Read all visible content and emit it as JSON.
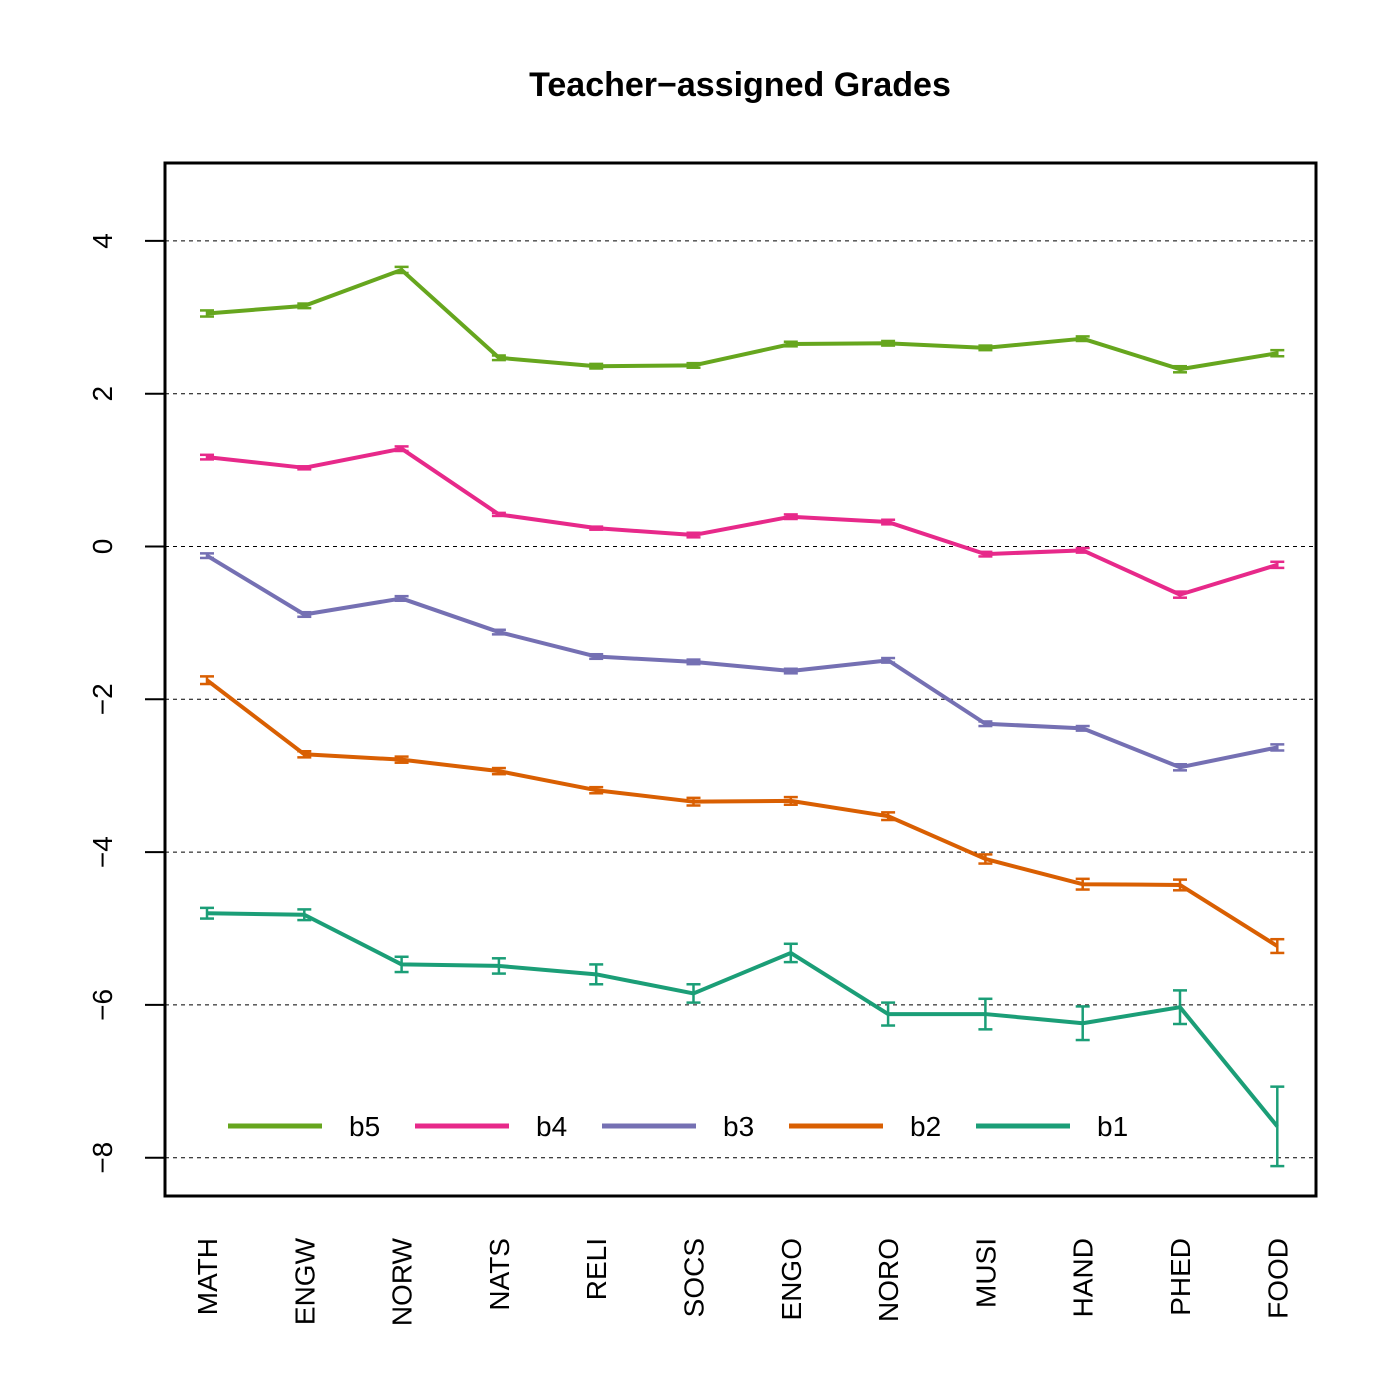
{
  "chart_data": {
    "type": "line",
    "title": "Teacher−assigned Grades",
    "xlabel": "",
    "ylabel": "",
    "ylim": [
      -9,
      5
    ],
    "yticks": [
      4,
      2,
      0,
      -2,
      -4,
      -6,
      -8
    ],
    "ytick_labels": [
      "4",
      "2",
      "0",
      "−2",
      "−4",
      "−6",
      "−8"
    ],
    "grid": "horizontal dashed at y ticks",
    "legend_position": "bottom, single row",
    "categories": [
      "MATH",
      "ENGW",
      "NORW",
      "NATS",
      "RELI",
      "SOCS",
      "ENGO",
      "NORO",
      "MUSI",
      "HAND",
      "PHED",
      "FOOD"
    ],
    "series": [
      {
        "name": "b5",
        "color": "#66A61E",
        "values": [
          3.05,
          3.15,
          3.62,
          2.47,
          2.36,
          2.37,
          2.65,
          2.66,
          2.6,
          2.72,
          2.32,
          2.53
        ],
        "err": [
          0.04,
          0.03,
          0.04,
          0.03,
          0.03,
          0.03,
          0.03,
          0.03,
          0.03,
          0.03,
          0.04,
          0.04
        ]
      },
      {
        "name": "b4",
        "color": "#E7298A",
        "values": [
          1.17,
          1.03,
          1.28,
          0.42,
          0.24,
          0.15,
          0.39,
          0.32,
          -0.1,
          -0.05,
          -0.63,
          -0.24
        ],
        "err": [
          0.03,
          0.02,
          0.03,
          0.02,
          0.02,
          0.03,
          0.03,
          0.03,
          0.03,
          0.03,
          0.04,
          0.04
        ]
      },
      {
        "name": "b3",
        "color": "#7570B3",
        "values": [
          -0.12,
          -0.89,
          -0.68,
          -1.12,
          -1.44,
          -1.51,
          -1.63,
          -1.49,
          -2.32,
          -2.38,
          -2.89,
          -2.63
        ],
        "err": [
          0.03,
          0.03,
          0.03,
          0.03,
          0.03,
          0.03,
          0.03,
          0.03,
          0.03,
          0.03,
          0.04,
          0.04
        ]
      },
      {
        "name": "b2",
        "color": "#D95F02",
        "values": [
          -1.75,
          -2.72,
          -2.79,
          -2.94,
          -3.19,
          -3.34,
          -3.33,
          -3.53,
          -4.09,
          -4.42,
          -4.43,
          -5.23
        ],
        "err": [
          0.05,
          0.04,
          0.04,
          0.04,
          0.04,
          0.05,
          0.05,
          0.05,
          0.06,
          0.07,
          0.07,
          0.09
        ]
      },
      {
        "name": "b1",
        "color": "#1B9E77",
        "values": [
          -4.8,
          -4.82,
          -5.47,
          -5.49,
          -5.6,
          -5.85,
          -5.32,
          -6.12,
          -6.12,
          -6.24,
          -6.03,
          -7.59
        ],
        "err": [
          0.07,
          0.07,
          0.1,
          0.1,
          0.13,
          0.12,
          0.12,
          0.15,
          0.2,
          0.22,
          0.22,
          0.52
        ]
      }
    ]
  }
}
